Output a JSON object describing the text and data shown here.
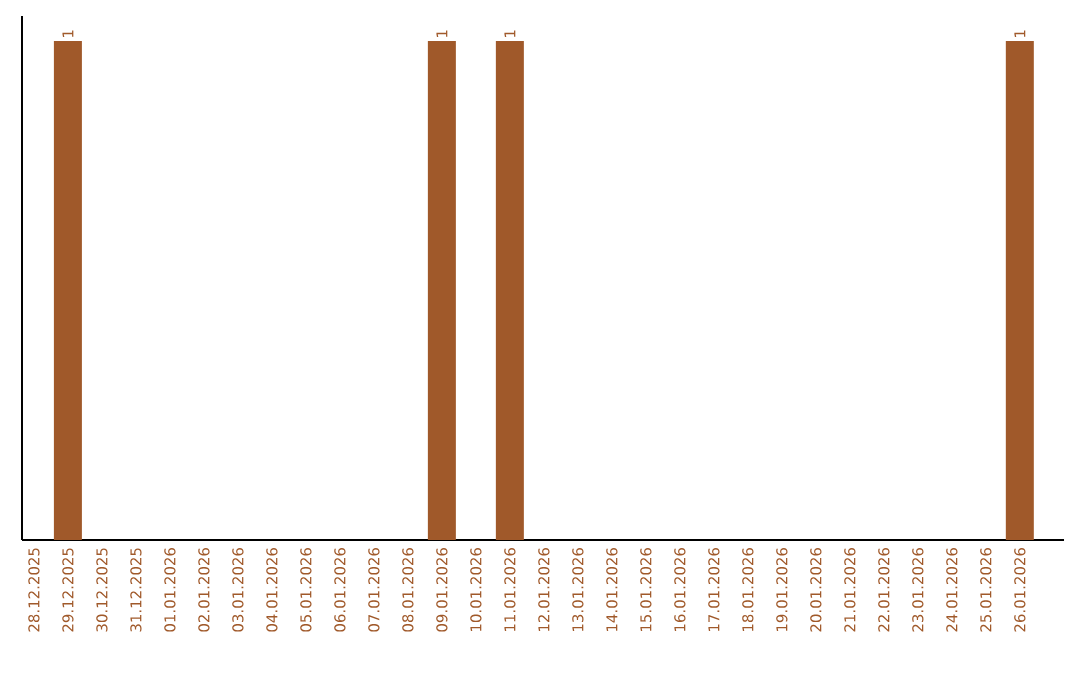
{
  "chart_data": {
    "type": "bar",
    "categories": [
      "28.12.2025",
      "29.12.2025",
      "30.12.2025",
      "31.12.2025",
      "01.01.2026",
      "02.01.2026",
      "03.01.2026",
      "04.01.2026",
      "05.01.2026",
      "06.01.2026",
      "07.01.2026",
      "08.01.2026",
      "09.01.2026",
      "10.01.2026",
      "11.01.2026",
      "12.01.2026",
      "13.01.2026",
      "14.01.2026",
      "15.01.2026",
      "16.01.2026",
      "17.01.2026",
      "18.01.2026",
      "19.01.2026",
      "20.01.2026",
      "21.01.2026",
      "22.01.2026",
      "23.01.2026",
      "24.01.2026",
      "25.01.2026",
      "26.01.2026"
    ],
    "values": [
      0,
      1,
      0,
      0,
      0,
      0,
      0,
      0,
      0,
      0,
      0,
      0,
      1,
      0,
      1,
      0,
      0,
      0,
      0,
      0,
      0,
      0,
      0,
      0,
      0,
      0,
      0,
      0,
      0,
      1
    ],
    "value_labels": [
      null,
      "1",
      null,
      null,
      null,
      null,
      null,
      null,
      null,
      null,
      null,
      null,
      "1",
      null,
      "1",
      null,
      null,
      null,
      null,
      null,
      null,
      null,
      null,
      null,
      null,
      null,
      null,
      null,
      null,
      "1"
    ],
    "color": "#a0592a"
  }
}
